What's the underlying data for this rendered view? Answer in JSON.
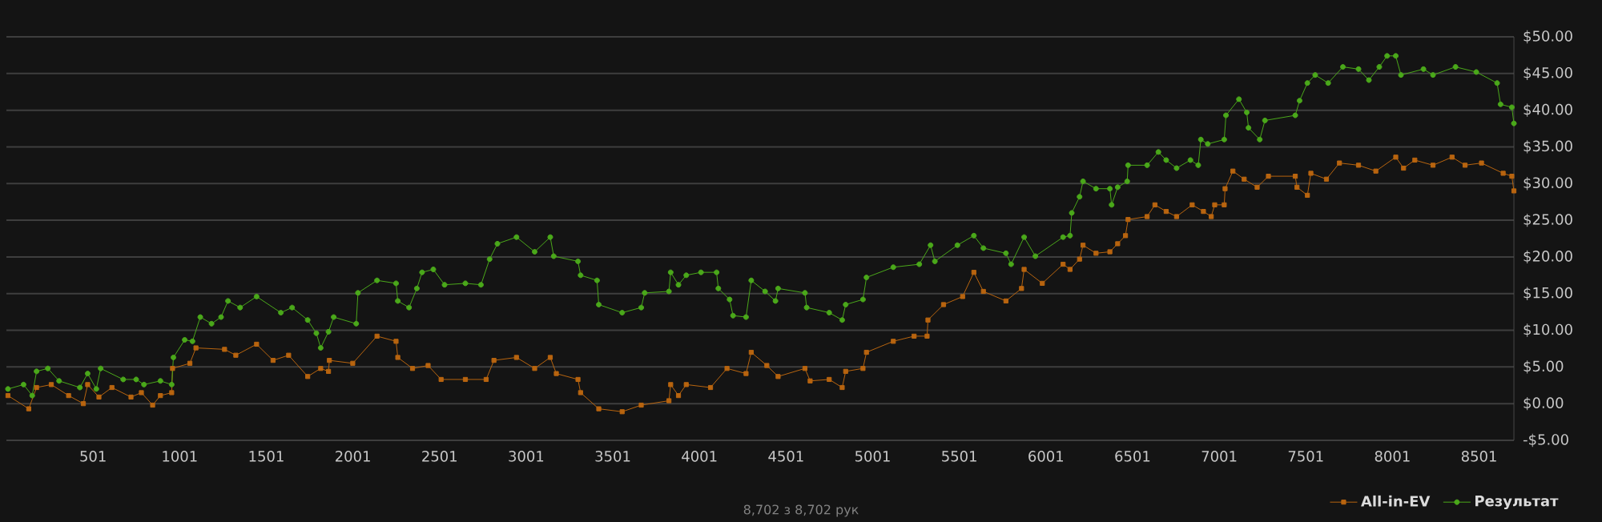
{
  "chart_data": {
    "type": "line",
    "annotations": [
      "8,702 з 8,702 рук"
    ],
    "xlim": [
      1,
      8702
    ],
    "xticks": [
      501,
      1001,
      1501,
      2001,
      2501,
      3001,
      3501,
      4001,
      4501,
      5001,
      5501,
      6001,
      6501,
      7001,
      7501,
      8001,
      8501
    ],
    "ylim": [
      -5,
      50
    ],
    "yticks": [
      {
        "value": -5,
        "label": "-$5.00"
      },
      {
        "value": 0,
        "label": "$0.00"
      },
      {
        "value": 5,
        "label": "$5.00"
      },
      {
        "value": 10,
        "label": "$10.00"
      },
      {
        "value": 15,
        "label": "$15.00"
      },
      {
        "value": 20,
        "label": "$20.00"
      },
      {
        "value": 25,
        "label": "$25.00"
      },
      {
        "value": 30,
        "label": "$30.00"
      },
      {
        "value": 35,
        "label": "$35.00"
      },
      {
        "value": 40,
        "label": "$40.00"
      },
      {
        "value": 45,
        "label": "$45.00"
      },
      {
        "value": 50,
        "label": "$50.00"
      }
    ],
    "grid": "y",
    "legend": "bottom right",
    "line_style": "solid",
    "series": [
      {
        "name": "All-in-EV",
        "color": "#b8640f",
        "marker": "square",
        "x": [
          10,
          130,
          175,
          260,
          360,
          445,
          470,
          535,
          610,
          720,
          780,
          845,
          890,
          955,
          960,
          1060,
          1095,
          1260,
          1325,
          1445,
          1540,
          1630,
          1740,
          1815,
          1860,
          1865,
          2000,
          2140,
          2250,
          2260,
          2345,
          2435,
          2510,
          2650,
          2770,
          2815,
          2945,
          3050,
          3140,
          3175,
          3300,
          3315,
          3420,
          3555,
          3665,
          3825,
          3835,
          3880,
          3925,
          4065,
          4160,
          4270,
          4300,
          4390,
          4455,
          4610,
          4640,
          4750,
          4825,
          4845,
          4945,
          4965,
          5120,
          5240,
          5315,
          5320,
          5410,
          5520,
          5585,
          5640,
          5770,
          5860,
          5875,
          5980,
          6100,
          6140,
          6195,
          6215,
          6290,
          6370,
          6415,
          6460,
          6475,
          6585,
          6630,
          6695,
          6755,
          6845,
          6910,
          6955,
          6975,
          7030,
          7035,
          7080,
          7145,
          7220,
          7285,
          7440,
          7450,
          7510,
          7530,
          7620,
          7695,
          7805,
          7905,
          8020,
          8065,
          8130,
          8235,
          8345,
          8420,
          8515,
          8640,
          8690,
          8702
        ],
        "values": [
          1.1,
          -0.7,
          2.2,
          2.6,
          1.1,
          0.0,
          2.6,
          0.9,
          2.2,
          0.9,
          1.5,
          -0.2,
          1.1,
          1.5,
          4.8,
          5.5,
          7.6,
          7.4,
          6.6,
          8.1,
          5.9,
          6.6,
          3.7,
          4.8,
          4.4,
          5.9,
          5.5,
          9.2,
          8.5,
          6.3,
          4.8,
          5.2,
          3.3,
          3.3,
          3.3,
          5.9,
          6.3,
          4.8,
          6.3,
          4.1,
          3.3,
          1.5,
          -0.7,
          -1.1,
          -0.2,
          0.4,
          2.6,
          1.1,
          2.6,
          2.2,
          4.8,
          4.1,
          7.0,
          5.2,
          3.7,
          4.8,
          3.1,
          3.3,
          2.2,
          4.4,
          4.8,
          7.0,
          8.5,
          9.2,
          9.2,
          11.4,
          13.5,
          14.6,
          17.9,
          15.3,
          14.0,
          15.7,
          18.3,
          16.4,
          19.0,
          18.3,
          19.7,
          21.6,
          20.5,
          20.7,
          21.8,
          22.9,
          25.1,
          25.5,
          27.1,
          26.2,
          25.5,
          27.1,
          26.2,
          25.5,
          27.1,
          27.1,
          29.3,
          31.7,
          30.6,
          29.5,
          31.0,
          31.0,
          29.5,
          28.4,
          31.4,
          30.6,
          32.8,
          32.5,
          31.7,
          33.6,
          32.1,
          33.2,
          32.5,
          33.6,
          32.5,
          32.8,
          31.4,
          31.0,
          29.0
        ]
      },
      {
        "name": "Результат",
        "color": "#4aa81a",
        "marker": "circle",
        "x": [
          10,
          100,
          150,
          175,
          240,
          305,
          425,
          470,
          520,
          545,
          675,
          750,
          795,
          890,
          955,
          965,
          1030,
          1075,
          1120,
          1185,
          1240,
          1280,
          1350,
          1445,
          1585,
          1650,
          1740,
          1790,
          1815,
          1860,
          1890,
          2020,
          2030,
          2140,
          2250,
          2260,
          2325,
          2370,
          2400,
          2465,
          2530,
          2650,
          2740,
          2790,
          2835,
          2945,
          3050,
          3140,
          3160,
          3300,
          3315,
          3410,
          3420,
          3555,
          3665,
          3685,
          3825,
          3835,
          3880,
          3925,
          4010,
          4100,
          4110,
          4175,
          4195,
          4270,
          4300,
          4380,
          4440,
          4455,
          4610,
          4620,
          4750,
          4825,
          4845,
          4945,
          4965,
          5120,
          5270,
          5335,
          5360,
          5490,
          5585,
          5640,
          5770,
          5800,
          5875,
          5940,
          6100,
          6140,
          6150,
          6195,
          6215,
          6290,
          6370,
          6380,
          6415,
          6470,
          6475,
          6585,
          6650,
          6695,
          6755,
          6835,
          6880,
          6895,
          6935,
          7030,
          7040,
          7115,
          7160,
          7170,
          7235,
          7265,
          7440,
          7465,
          7510,
          7555,
          7630,
          7715,
          7805,
          7865,
          7925,
          7970,
          8020,
          8050,
          8180,
          8235,
          8365,
          8485,
          8605,
          8625,
          8690,
          8702
        ],
        "values": [
          2.0,
          2.6,
          1.1,
          4.4,
          4.8,
          3.1,
          2.2,
          4.1,
          2.0,
          4.8,
          3.3,
          3.3,
          2.6,
          3.1,
          2.6,
          6.3,
          8.7,
          8.5,
          11.8,
          10.9,
          11.8,
          14.0,
          13.1,
          14.6,
          12.4,
          13.1,
          11.4,
          9.6,
          7.6,
          9.8,
          11.8,
          10.9,
          15.1,
          16.8,
          16.4,
          14.0,
          13.1,
          15.7,
          17.9,
          18.3,
          16.2,
          16.4,
          16.2,
          19.7,
          21.8,
          22.7,
          20.7,
          22.7,
          20.1,
          19.4,
          17.5,
          16.8,
          13.5,
          12.4,
          13.1,
          15.1,
          15.3,
          17.9,
          16.2,
          17.5,
          17.9,
          17.9,
          15.7,
          14.2,
          12.0,
          11.8,
          16.8,
          15.3,
          14.0,
          15.7,
          15.1,
          13.1,
          12.4,
          11.4,
          13.5,
          14.2,
          17.2,
          18.6,
          19.0,
          21.6,
          19.4,
          21.6,
          22.9,
          21.2,
          20.5,
          19.0,
          22.7,
          20.1,
          22.7,
          22.9,
          26.0,
          28.2,
          30.3,
          29.3,
          29.3,
          27.1,
          29.5,
          30.3,
          32.5,
          32.5,
          34.3,
          33.2,
          32.1,
          33.2,
          32.5,
          36.0,
          35.4,
          36.0,
          39.3,
          41.5,
          39.7,
          37.6,
          36.0,
          38.6,
          39.3,
          41.3,
          43.7,
          44.8,
          43.7,
          45.9,
          45.6,
          44.1,
          45.9,
          47.4,
          47.4,
          44.8,
          45.6,
          44.8,
          45.9,
          45.2,
          43.7,
          40.8,
          40.4,
          38.2
        ]
      }
    ]
  }
}
